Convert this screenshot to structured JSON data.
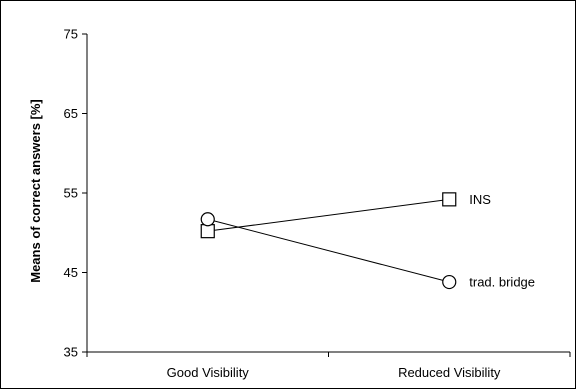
{
  "chart_data": {
    "type": "line",
    "title": "",
    "xlabel": "",
    "ylabel": "Means of correct answers [%]",
    "categories": [
      "Good Visibility",
      "Reduced Visibility"
    ],
    "ylim": [
      35,
      75
    ],
    "yticks": [
      35,
      45,
      55,
      65,
      75
    ],
    "grid": false,
    "series": [
      {
        "name": "INS",
        "marker": "square",
        "values": [
          50.2,
          54.2
        ]
      },
      {
        "name": "trad. bridge",
        "marker": "circle",
        "values": [
          51.7,
          43.8
        ]
      }
    ]
  },
  "colors": {
    "line": "#000000",
    "marker_fill": "#ffffff",
    "frame": "#000000"
  }
}
